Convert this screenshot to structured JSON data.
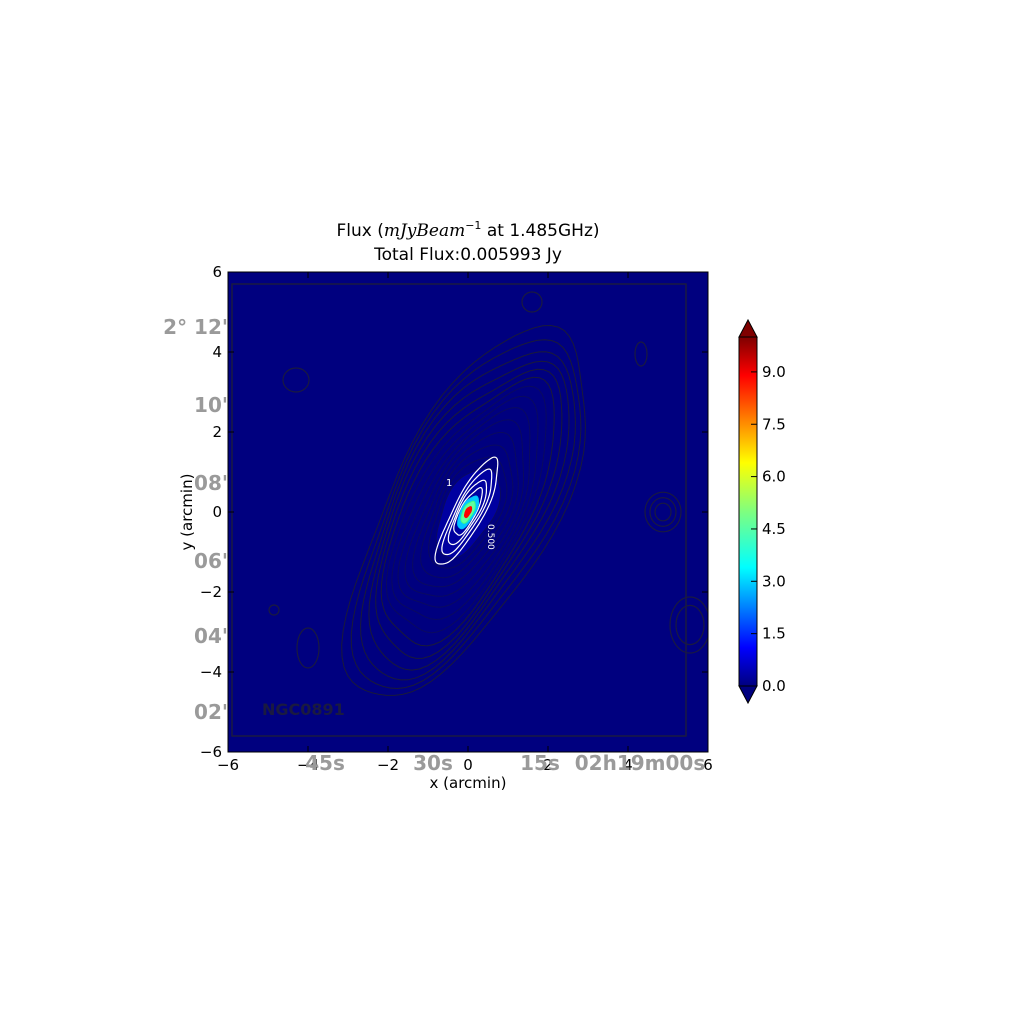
{
  "chart_data": {
    "type": "heatmap",
    "title_prefix": "Flux (",
    "title_math": "mJyBeam",
    "title_math_sup": "−1",
    "title_suffix": "  at 1.485GHz)",
    "subtitle": "Total Flux:0.005993 Jy",
    "xlabel": "x (arcmin)",
    "ylabel": "y (arcmin)",
    "xlim": [
      -6,
      6
    ],
    "ylim": [
      -6,
      6
    ],
    "xticks": [
      -6,
      -4,
      -2,
      0,
      2,
      4,
      6
    ],
    "yticks": [
      -6,
      -4,
      -2,
      0,
      2,
      4,
      6
    ],
    "colorbar": {
      "colormap": "jet",
      "range": [
        0.0,
        10.0
      ],
      "ticks": [
        0.0,
        1.5,
        3.0,
        4.5,
        6.0,
        7.5,
        9.0
      ],
      "tick_labels": [
        "0.0",
        "1.5",
        "3.0",
        "4.5",
        "6.0",
        "7.5",
        "9.0"
      ],
      "extend": "both"
    },
    "background_color": "#00007f",
    "source": {
      "center": [
        0.0,
        0.0
      ],
      "orientation": "diagonal, upper-left to lower-right",
      "peak_color": "#ff0000"
    },
    "overlay_labels": {
      "dec_ticks": [
        "2° 12'",
        "10'",
        "08'",
        "06'",
        "04'",
        "02'"
      ],
      "ra_ticks": [
        "45s",
        "30s",
        "15s",
        "02h19m00s"
      ],
      "object_name": "NGC0891",
      "contour_labels": [
        "1",
        "0.500"
      ]
    }
  }
}
